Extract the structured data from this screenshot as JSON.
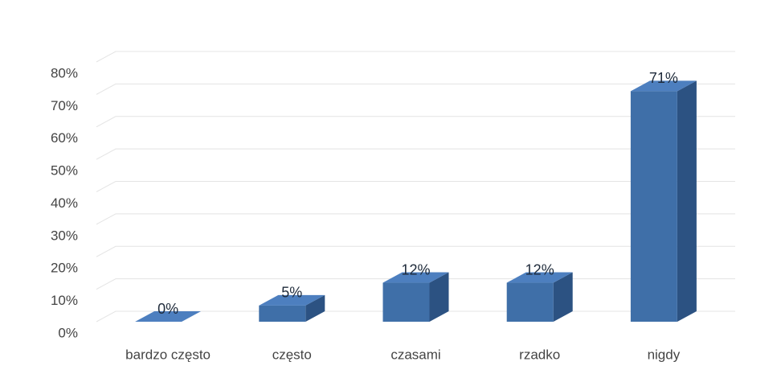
{
  "chart_data": {
    "type": "bar",
    "categories": [
      "bardzo często",
      "często",
      "czasami",
      "rzadko",
      "nigdy"
    ],
    "values": [
      0,
      5,
      12,
      12,
      71
    ],
    "value_labels": [
      "0%",
      "5%",
      "12%",
      "12%",
      "71%"
    ],
    "color": "#3f6fa8",
    "ylim": [
      0,
      80
    ],
    "yticks": [
      {
        "value": 0,
        "label": "0%"
      },
      {
        "value": 10,
        "label": "10%"
      },
      {
        "value": 20,
        "label": "20%"
      },
      {
        "value": 30,
        "label": "30%"
      },
      {
        "value": 40,
        "label": "40%"
      },
      {
        "value": 50,
        "label": "50%"
      },
      {
        "value": 60,
        "label": "60%"
      },
      {
        "value": 70,
        "label": "70%"
      },
      {
        "value": 80,
        "label": "80%"
      }
    ],
    "grid": true
  }
}
